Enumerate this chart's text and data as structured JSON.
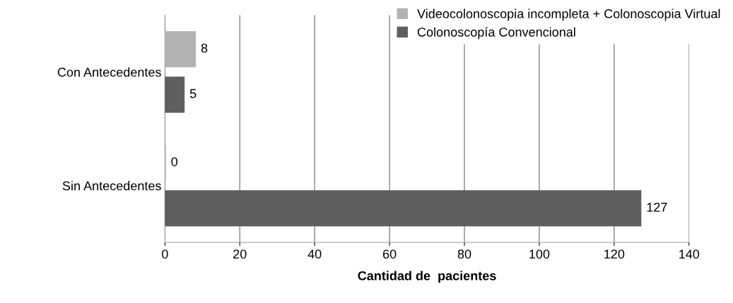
{
  "chart_data": {
    "type": "bar",
    "orientation": "horizontal",
    "categories": [
      "Con Antecedentes",
      "Sin Antecedentes"
    ],
    "series": [
      {
        "name": "Videocolonoscopia incompleta + Colonoscopia Virtual",
        "color": "#b2b2b2",
        "values": [
          8,
          0
        ]
      },
      {
        "name": "Colonoscopía Convencional",
        "color": "#5f5f5f",
        "values": [
          5,
          127
        ]
      }
    ],
    "xlabel": "Cantidad de  pacientes",
    "xlim": [
      0,
      140
    ],
    "xticks": [
      0,
      20,
      40,
      60,
      80,
      100,
      120,
      140
    ],
    "grid": "x",
    "legend": "top right",
    "data_labels": true
  }
}
